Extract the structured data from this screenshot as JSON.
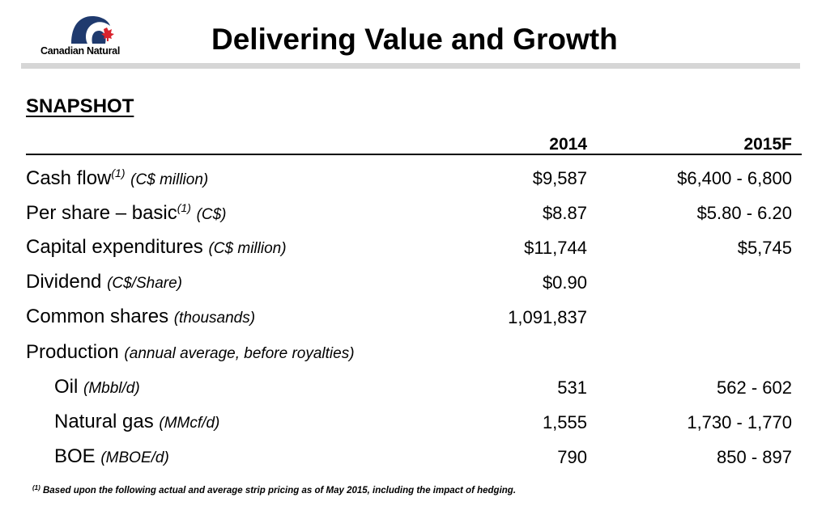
{
  "header": {
    "logo_text": "Canadian Natural",
    "title": "Delivering Value and Growth"
  },
  "section_title": "SNAPSHOT",
  "columns": [
    "2014",
    "2015F"
  ],
  "rows": [
    {
      "label": "Cash flow",
      "sup": "(1)",
      "unit": "(C$ million)",
      "v2014": "$9,587",
      "v2015": "$6,400 - 6,800"
    },
    {
      "label": "Per share – basic",
      "sup": "(1)",
      "unit": "(C$)",
      "v2014": "$8.87",
      "v2015": "$5.80 - 6.20"
    },
    {
      "label": "Capital expenditures",
      "sup": "",
      "unit": "(C$ million)",
      "v2014": "$11,744",
      "v2015": "$5,745"
    },
    {
      "label": "Dividend",
      "sup": "",
      "unit": "(C$/Share)",
      "v2014": "$0.90",
      "v2015": ""
    },
    {
      "label": "Common shares",
      "sup": "",
      "unit": "(thousands)",
      "v2014": "1,091,837",
      "v2015": ""
    },
    {
      "label": "Production",
      "sup": "",
      "unit": "(annual average, before royalties)",
      "v2014": "",
      "v2015": ""
    },
    {
      "label": "Oil",
      "sup": "",
      "unit": "(Mbbl/d)",
      "v2014": "531",
      "v2015": "562 - 602"
    },
    {
      "label": "Natural gas",
      "sup": "",
      "unit": "(MMcf/d)",
      "v2014": "1,555",
      "v2015": "1,730 - 1,770"
    },
    {
      "label": "BOE",
      "sup": "",
      "unit": "(MBOE/d)",
      "v2014": "790",
      "v2015": "850 - 897"
    }
  ],
  "footnote": {
    "marker": "(1)",
    "text": "Based upon the following actual and average strip pricing as of May 2015, including the impact of hedging."
  },
  "colors": {
    "logo_blue": "#1f3a6e",
    "logo_red": "#d9232d",
    "title_bar": "#d6d6d6"
  }
}
